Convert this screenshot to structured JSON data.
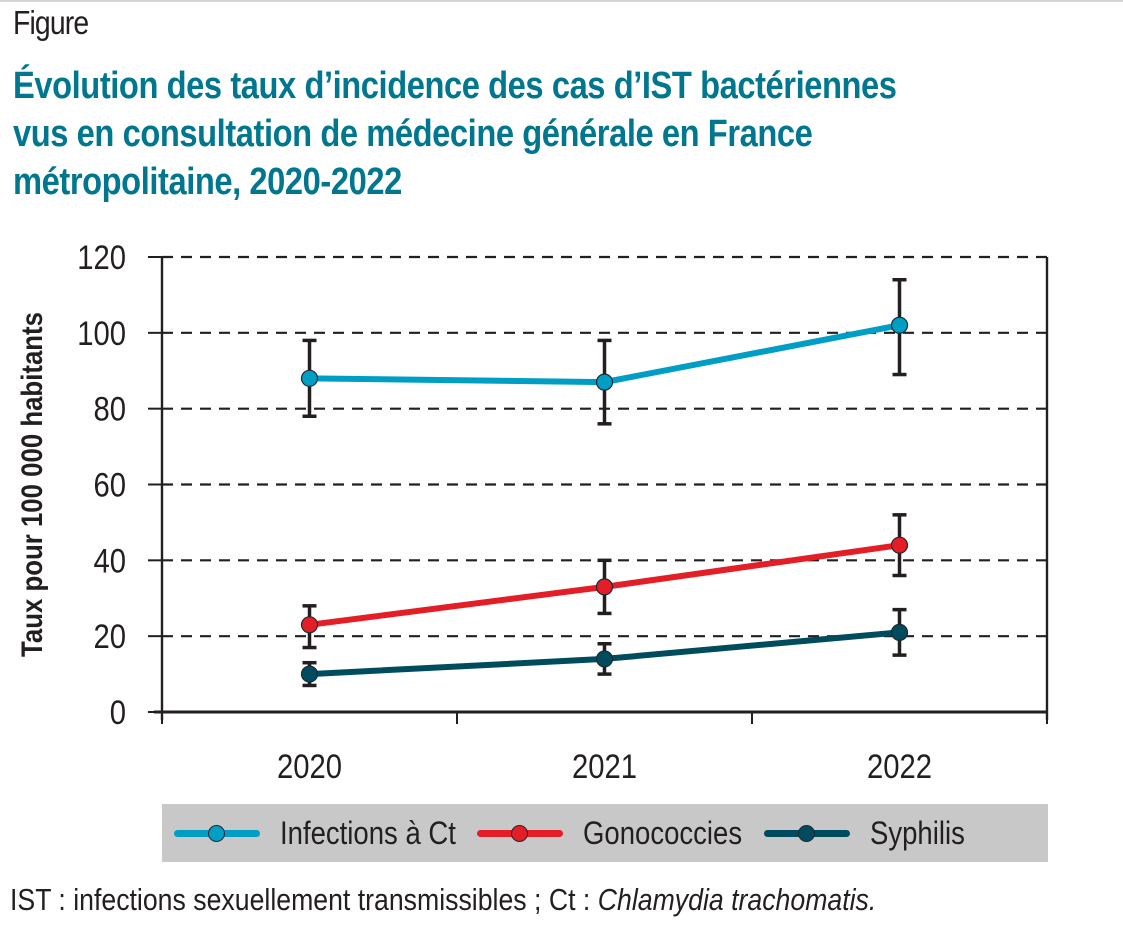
{
  "figure_label": "Figure",
  "title_lines": [
    "Évolution des taux d’incidence des cas d’IST bactériennes",
    "vus en consultation de médecine générale en France",
    "métropolitaine, 2020-2022"
  ],
  "footnote": {
    "plain": "IST : infections sexuellement transmissibles ; Ct : ",
    "italic": "Chlamydia trachomatis."
  },
  "chart_data": {
    "type": "line",
    "title": "Évolution des taux d’incidence des cas d’IST bactériennes vus en consultation de médecine générale en France métropolitaine, 2020-2022",
    "xlabel": "",
    "ylabel": "Taux pour 100 000 habitants",
    "x": [
      "2020",
      "2021",
      "2022"
    ],
    "ylim": [
      0,
      120
    ],
    "yticks": [
      "0",
      "20",
      "40",
      "60",
      "80",
      "100",
      "120"
    ],
    "grid": "horizontal dashed",
    "legend_position": "bottom",
    "series": [
      {
        "name": "Infections à Ct",
        "color": "#009ec5",
        "values": [
          88,
          87,
          102
        ],
        "ci_low": [
          78,
          76,
          89
        ],
        "ci_high": [
          98,
          98,
          114
        ]
      },
      {
        "name": "Gonococcies",
        "color": "#e41e26",
        "values": [
          23,
          33,
          44
        ],
        "ci_low": [
          17,
          26,
          36
        ],
        "ci_high": [
          28,
          40,
          52
        ]
      },
      {
        "name": "Syphilis",
        "color": "#004b5e",
        "values": [
          10,
          14,
          21
        ],
        "ci_low": [
          7,
          10,
          15
        ],
        "ci_high": [
          13,
          18,
          27
        ]
      }
    ]
  }
}
